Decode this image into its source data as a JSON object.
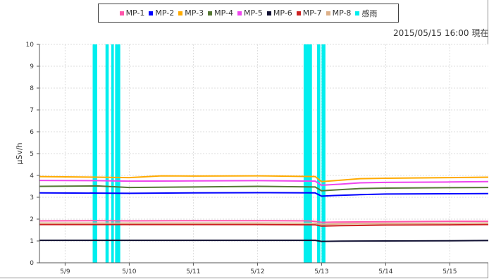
{
  "timestamp": "2015/05/15 16:00 現在",
  "chart_data": {
    "type": "line",
    "title": "",
    "xlabel": "",
    "ylabel": "μSv/h",
    "ylim": [
      0,
      10
    ],
    "yticks": [
      "0",
      "1",
      "2",
      "3",
      "4",
      "5",
      "6",
      "7",
      "8",
      "9",
      "10"
    ],
    "xlim": [
      8.6,
      15.6
    ],
    "xticks": [
      {
        "value": 9,
        "label": "5/9"
      },
      {
        "value": 10,
        "label": "5/10"
      },
      {
        "value": 11,
        "label": "5/11"
      },
      {
        "value": 12,
        "label": "5/12"
      },
      {
        "value": 13,
        "label": "5/13"
      },
      {
        "value": 14,
        "label": "5/14"
      },
      {
        "value": 15,
        "label": "5/15"
      }
    ],
    "grid": true,
    "legend_position": "top",
    "series": [
      {
        "name": "MP-1",
        "color": "#ff55aa",
        "points": [
          [
            8.6,
            1.92
          ],
          [
            9.5,
            1.93
          ],
          [
            10.0,
            1.92
          ],
          [
            11.0,
            1.93
          ],
          [
            12.0,
            1.93
          ],
          [
            12.8,
            1.92
          ],
          [
            12.95,
            1.88
          ],
          [
            13.0,
            1.85
          ],
          [
            13.2,
            1.86
          ],
          [
            14.0,
            1.88
          ],
          [
            15.0,
            1.9
          ],
          [
            15.6,
            1.9
          ]
        ]
      },
      {
        "name": "MP-2",
        "color": "#0000ff",
        "points": [
          [
            8.6,
            3.2
          ],
          [
            9.5,
            3.19
          ],
          [
            10.0,
            3.18
          ],
          [
            11.0,
            3.2
          ],
          [
            12.0,
            3.21
          ],
          [
            12.9,
            3.2
          ],
          [
            13.0,
            3.05
          ],
          [
            13.2,
            3.08
          ],
          [
            13.6,
            3.12
          ],
          [
            14.0,
            3.15
          ],
          [
            15.0,
            3.16
          ],
          [
            15.6,
            3.17
          ]
        ]
      },
      {
        "name": "MP-3",
        "color": "#ffaa00",
        "points": [
          [
            8.6,
            3.95
          ],
          [
            9.5,
            3.92
          ],
          [
            10.0,
            3.9
          ],
          [
            10.5,
            3.98
          ],
          [
            11.0,
            3.97
          ],
          [
            12.0,
            3.98
          ],
          [
            12.9,
            3.95
          ],
          [
            13.0,
            3.72
          ],
          [
            13.3,
            3.78
          ],
          [
            13.6,
            3.85
          ],
          [
            14.0,
            3.87
          ],
          [
            15.0,
            3.9
          ],
          [
            15.6,
            3.92
          ]
        ]
      },
      {
        "name": "MP-4",
        "color": "#557733",
        "points": [
          [
            8.6,
            3.5
          ],
          [
            9.5,
            3.52
          ],
          [
            10.0,
            3.45
          ],
          [
            11.0,
            3.47
          ],
          [
            12.0,
            3.5
          ],
          [
            12.9,
            3.47
          ],
          [
            13.0,
            3.3
          ],
          [
            13.3,
            3.35
          ],
          [
            13.6,
            3.4
          ],
          [
            14.0,
            3.42
          ],
          [
            15.0,
            3.44
          ],
          [
            15.6,
            3.45
          ]
        ]
      },
      {
        "name": "MP-5",
        "color": "#ee44ee",
        "points": [
          [
            8.6,
            3.77
          ],
          [
            9.5,
            3.76
          ],
          [
            10.0,
            3.74
          ],
          [
            11.0,
            3.75
          ],
          [
            12.0,
            3.76
          ],
          [
            12.9,
            3.74
          ],
          [
            13.0,
            3.55
          ],
          [
            13.3,
            3.6
          ],
          [
            13.6,
            3.66
          ],
          [
            14.0,
            3.68
          ],
          [
            15.0,
            3.7
          ],
          [
            15.6,
            3.72
          ]
        ]
      },
      {
        "name": "MP-6",
        "color": "#111133",
        "points": [
          [
            8.6,
            1.03
          ],
          [
            9.5,
            1.03
          ],
          [
            10.0,
            1.03
          ],
          [
            11.0,
            1.03
          ],
          [
            12.0,
            1.03
          ],
          [
            12.9,
            1.03
          ],
          [
            13.0,
            0.98
          ],
          [
            13.3,
            0.99
          ],
          [
            14.0,
            1.0
          ],
          [
            15.0,
            1.01
          ],
          [
            15.6,
            1.02
          ]
        ]
      },
      {
        "name": "MP-7",
        "color": "#cc2222",
        "points": [
          [
            8.6,
            1.75
          ],
          [
            9.5,
            1.75
          ],
          [
            10.0,
            1.75
          ],
          [
            11.0,
            1.75
          ],
          [
            12.0,
            1.75
          ],
          [
            12.9,
            1.74
          ],
          [
            13.0,
            1.68
          ],
          [
            13.3,
            1.7
          ],
          [
            14.0,
            1.73
          ],
          [
            15.0,
            1.74
          ],
          [
            15.6,
            1.75
          ]
        ]
      },
      {
        "name": "MP-8",
        "color": "#ddb088",
        "points": [
          [
            8.6,
            1.82
          ],
          [
            9.5,
            1.82
          ],
          [
            10.0,
            1.82
          ],
          [
            11.0,
            1.82
          ],
          [
            12.0,
            1.82
          ],
          [
            12.9,
            1.81
          ],
          [
            13.0,
            1.76
          ],
          [
            13.3,
            1.78
          ],
          [
            14.0,
            1.8
          ],
          [
            15.0,
            1.81
          ],
          [
            15.6,
            1.82
          ]
        ]
      }
    ],
    "rain": {
      "name": "感雨",
      "color": "#00eeee",
      "intervals": [
        [
          9.43,
          9.5
        ],
        [
          9.63,
          9.68
        ],
        [
          9.72,
          9.76
        ],
        [
          9.78,
          9.86
        ],
        [
          12.72,
          12.85
        ],
        [
          12.93,
          12.98
        ],
        [
          13.0,
          13.06
        ]
      ]
    }
  }
}
